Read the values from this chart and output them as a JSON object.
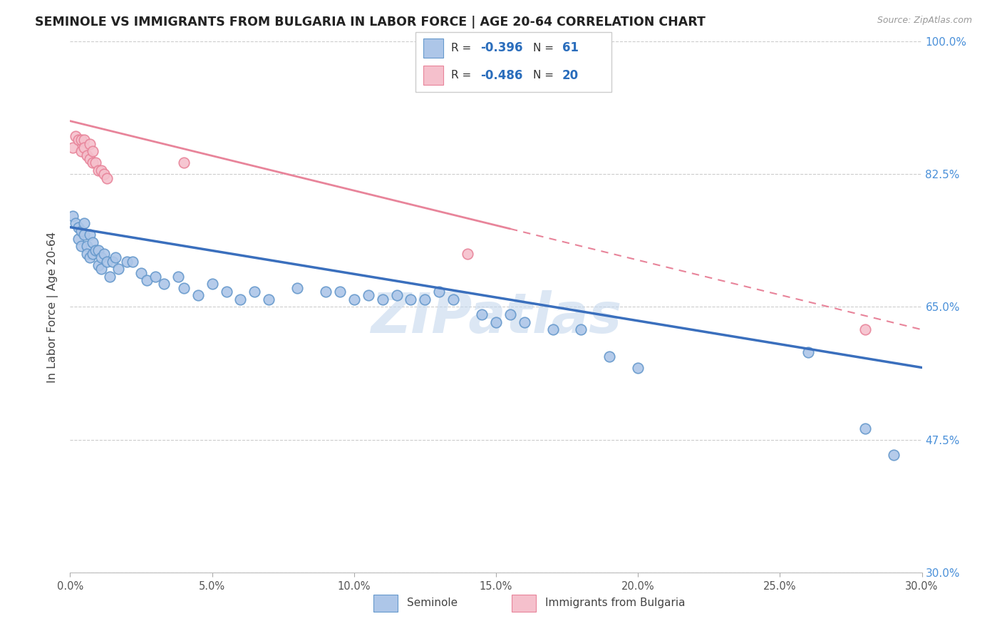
{
  "title": "SEMINOLE VS IMMIGRANTS FROM BULGARIA IN LABOR FORCE | AGE 20-64 CORRELATION CHART",
  "source": "Source: ZipAtlas.com",
  "ylabel": "In Labor Force | Age 20-64",
  "xlim": [
    0.0,
    0.3
  ],
  "ylim": [
    0.3,
    1.0
  ],
  "xticks": [
    0.0,
    0.05,
    0.1,
    0.15,
    0.2,
    0.25,
    0.3
  ],
  "yticks": [
    0.3,
    0.475,
    0.65,
    0.825,
    1.0
  ],
  "ytick_labels": [
    "30.0%",
    "47.5%",
    "65.0%",
    "82.5%",
    "100.0%"
  ],
  "xtick_labels": [
    "0.0%",
    "5.0%",
    "10.0%",
    "15.0%",
    "20.0%",
    "25.0%",
    "30.0%"
  ],
  "blue_color": "#adc6e8",
  "blue_edge_color": "#6699cc",
  "blue_line_color": "#3a6fbd",
  "pink_color": "#f5c0cc",
  "pink_edge_color": "#e8849a",
  "pink_line_color": "#e8849a",
  "R_blue": "-0.396",
  "N_blue": "61",
  "R_pink": "-0.486",
  "N_pink": "20",
  "watermark": "ZIPatlas",
  "watermark_color": "#c5d8ee",
  "legend_label_blue": "Seminole",
  "legend_label_pink": "Immigrants from Bulgaria",
  "seminole_x": [
    0.001,
    0.002,
    0.003,
    0.003,
    0.004,
    0.004,
    0.005,
    0.005,
    0.006,
    0.006,
    0.007,
    0.007,
    0.008,
    0.008,
    0.009,
    0.01,
    0.01,
    0.011,
    0.011,
    0.012,
    0.013,
    0.014,
    0.015,
    0.016,
    0.017,
    0.02,
    0.022,
    0.025,
    0.027,
    0.03,
    0.033,
    0.038,
    0.04,
    0.045,
    0.05,
    0.055,
    0.06,
    0.065,
    0.07,
    0.08,
    0.09,
    0.095,
    0.1,
    0.105,
    0.11,
    0.115,
    0.12,
    0.125,
    0.13,
    0.135,
    0.145,
    0.15,
    0.155,
    0.16,
    0.17,
    0.18,
    0.19,
    0.2,
    0.26,
    0.28,
    0.29
  ],
  "seminole_y": [
    0.77,
    0.76,
    0.755,
    0.74,
    0.75,
    0.73,
    0.76,
    0.745,
    0.73,
    0.72,
    0.715,
    0.745,
    0.72,
    0.735,
    0.725,
    0.725,
    0.705,
    0.7,
    0.715,
    0.72,
    0.71,
    0.69,
    0.71,
    0.715,
    0.7,
    0.71,
    0.71,
    0.695,
    0.685,
    0.69,
    0.68,
    0.69,
    0.675,
    0.665,
    0.68,
    0.67,
    0.66,
    0.67,
    0.66,
    0.675,
    0.67,
    0.67,
    0.66,
    0.665,
    0.66,
    0.665,
    0.66,
    0.66,
    0.67,
    0.66,
    0.64,
    0.63,
    0.64,
    0.63,
    0.62,
    0.62,
    0.585,
    0.57,
    0.59,
    0.49,
    0.455
  ],
  "bulgaria_x": [
    0.001,
    0.002,
    0.003,
    0.004,
    0.004,
    0.005,
    0.005,
    0.006,
    0.007,
    0.007,
    0.008,
    0.008,
    0.009,
    0.01,
    0.011,
    0.012,
    0.013,
    0.04,
    0.14,
    0.28
  ],
  "bulgaria_y": [
    0.86,
    0.875,
    0.87,
    0.87,
    0.855,
    0.87,
    0.86,
    0.85,
    0.865,
    0.845,
    0.855,
    0.84,
    0.84,
    0.83,
    0.83,
    0.825,
    0.82,
    0.84,
    0.72,
    0.62
  ],
  "blue_trend_x0": 0.0,
  "blue_trend_x1": 0.3,
  "blue_trend_y0": 0.755,
  "blue_trend_y1": 0.57,
  "pink_trend_x0": 0.0,
  "pink_trend_x1": 0.3,
  "pink_trend_y0": 0.895,
  "pink_trend_y1": 0.62
}
